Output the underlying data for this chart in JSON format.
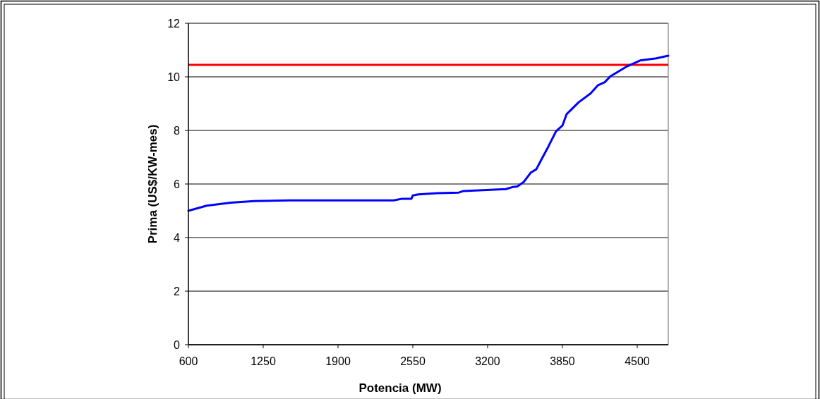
{
  "chart_data": {
    "type": "line",
    "xlabel": "Potencia (MW)",
    "ylabel": "Prima (US$/KW-mes)",
    "xlim": [
      600,
      4770
    ],
    "xticks": [
      600,
      1250,
      1900,
      2550,
      3200,
      3850,
      4500
    ],
    "ylim": [
      0,
      12
    ],
    "yticks": [
      0,
      2,
      4,
      6,
      8,
      10,
      12
    ],
    "grid": "y",
    "marker": "none",
    "line_style": "solid",
    "series": [
      {
        "color": "#0000ff",
        "x": [
          600,
          759,
          968,
          1170,
          1477,
          2384,
          2458,
          2538,
          2550,
          2599,
          2765,
          2949,
          2991,
          3359,
          3421,
          3458,
          3513,
          3574,
          3623,
          3666,
          3727,
          3795,
          3850,
          3887,
          3991,
          4095,
          4157,
          4218,
          4267,
          4402,
          4525,
          4666,
          4770
        ],
        "values": [
          5.0,
          5.19,
          5.3,
          5.36,
          5.39,
          5.39,
          5.45,
          5.45,
          5.57,
          5.61,
          5.66,
          5.68,
          5.74,
          5.81,
          5.89,
          5.91,
          6.07,
          6.42,
          6.55,
          6.9,
          7.39,
          7.97,
          8.18,
          8.61,
          9.05,
          9.38,
          9.68,
          9.8,
          10.02,
          10.37,
          10.61,
          10.69,
          10.79
        ]
      }
    ],
    "ref_lines": [
      {
        "axis": "y",
        "value": 10.45,
        "color": "#ff0000",
        "line_style": "solid"
      }
    ]
  }
}
